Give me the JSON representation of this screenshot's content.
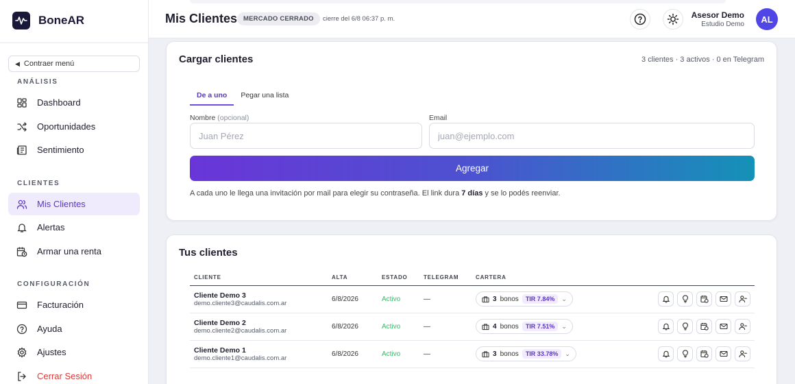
{
  "brand": {
    "name": "BoneAR"
  },
  "sidebar": {
    "collapse_label": "Contraer menú",
    "sections": {
      "analisis": "ANÁLISIS",
      "clientes": "CLIENTES",
      "configuracion": "CONFIGURACIÓN"
    },
    "items": {
      "dashboard": "Dashboard",
      "oportunidades": "Oportunidades",
      "sentimiento": "Sentimiento",
      "mis_clientes": "Mis Clientes",
      "alertas": "Alertas",
      "armar_renta": "Armar una renta",
      "facturacion": "Facturación",
      "ayuda": "Ayuda",
      "ajustes": "Ajustes",
      "cerrar_sesion": "Cerrar Sesión"
    },
    "active_item": "Mis Clientes"
  },
  "header": {
    "title": "Mis Clientes",
    "market_status": "MERCADO CERRADO",
    "close_time": "cierre del 6/8 06:37 p. m.",
    "user_name": "Asesor Demo",
    "user_org": "Estudio Demo",
    "avatar_initials": "AL"
  },
  "load_card": {
    "title": "Cargar clientes",
    "stats": "3 clientes · 3 activos · 0 en Telegram",
    "tabs": [
      "De a uno",
      "Pegar una lista"
    ],
    "active_tab": "De a uno",
    "name_label": "Nombre",
    "name_optional": "(opcional)",
    "name_placeholder": "Juan Pérez",
    "email_label": "Email",
    "email_placeholder": "juan@ejemplo.com",
    "submit_label": "Agregar",
    "note_before": "A cada uno le llega una invitación por mail para elegir su contraseña. El link dura ",
    "note_bold": "7 días",
    "note_after": " y se lo podés reenviar."
  },
  "clients_card": {
    "title": "Tus clientes",
    "columns": [
      "CLIENTE",
      "ALTA",
      "ESTADO",
      "TELEGRAM",
      "CARTERA"
    ],
    "rows": [
      {
        "name": "Cliente Demo 3",
        "email": "demo.cliente3@caudalis.com.ar",
        "alta": "6/8/2026",
        "estado": "Activo",
        "telegram": "—",
        "bonos_count": "3",
        "bonos_label": "bonos",
        "tir": "TIR 7.84%"
      },
      {
        "name": "Cliente Demo 2",
        "email": "demo.cliente2@caudalis.com.ar",
        "alta": "6/8/2026",
        "estado": "Activo",
        "telegram": "—",
        "bonos_count": "4",
        "bonos_label": "bonos",
        "tir": "TIR 7.51%"
      },
      {
        "name": "Cliente Demo 1",
        "email": "demo.cliente1@caudalis.com.ar",
        "alta": "6/8/2026",
        "estado": "Activo",
        "telegram": "—",
        "bonos_count": "3",
        "bonos_label": "bonos",
        "tir": "TIR 33.78%"
      }
    ],
    "row_action_icons": [
      "bell-icon",
      "lightbulb-icon",
      "calendar-money-icon",
      "mail-icon",
      "user-remove-icon"
    ]
  },
  "colors": {
    "accent": "#5b34c7",
    "active_bg": "#efeafc",
    "logout": "#d93a3a",
    "status_active": "#3cb86a",
    "gradient_start": "#6a35d8",
    "gradient_end": "#1492b8"
  }
}
